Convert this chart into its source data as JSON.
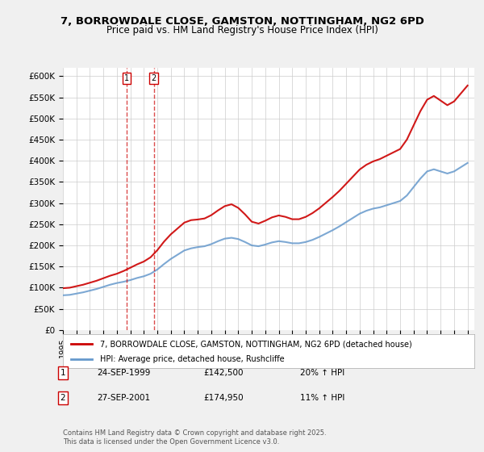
{
  "title": "7, BORROWDALE CLOSE, GAMSTON, NOTTINGHAM, NG2 6PD",
  "subtitle": "Price paid vs. HM Land Registry's House Price Index (HPI)",
  "legend_label_red": "7, BORROWDALE CLOSE, GAMSTON, NOTTINGHAM, NG2 6PD (detached house)",
  "legend_label_blue": "HPI: Average price, detached house, Rushcliffe",
  "footer": "Contains HM Land Registry data © Crown copyright and database right 2025.\nThis data is licensed under the Open Government Licence v3.0.",
  "transactions": [
    {
      "num": 1,
      "date": "24-SEP-1999",
      "price": "£142,500",
      "hpi": "20% ↑ HPI",
      "year_x": 1999.73
    },
    {
      "num": 2,
      "date": "27-SEP-2001",
      "price": "£174,950",
      "hpi": "11% ↑ HPI",
      "year_x": 2001.73
    }
  ],
  "ylim": [
    0,
    620000
  ],
  "yticks": [
    0,
    50000,
    100000,
    150000,
    200000,
    250000,
    300000,
    350000,
    400000,
    450000,
    500000,
    550000,
    600000
  ],
  "xlim_start": 1995.0,
  "xlim_end": 2025.5,
  "red_color": "#cc0000",
  "blue_color": "#6699cc",
  "marker_color_red": "#cc0000",
  "dashed_color_red": "#cc0000",
  "dashed_color_blue": "#6699cc",
  "bg_color": "#f0f0f0",
  "plot_bg": "#ffffff",
  "grid_color": "#cccccc"
}
